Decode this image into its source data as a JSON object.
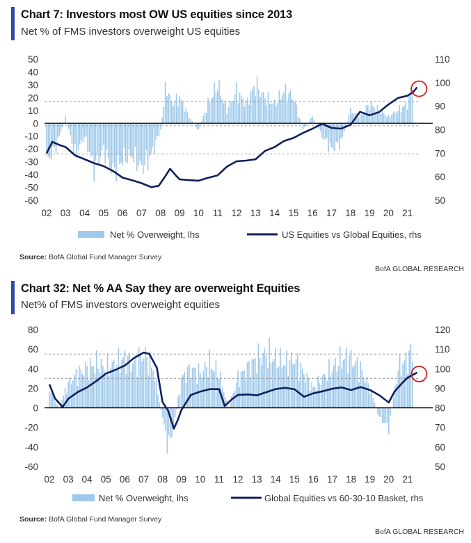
{
  "chart_data": [
    {
      "type": "bar",
      "title": "Chart 7: Investors most OW US equities since 2013",
      "subtitle": "Net % of FMS investors overweight US equities",
      "x_ticks": [
        "02",
        "03",
        "04",
        "05",
        "06",
        "07",
        "08",
        "09",
        "10",
        "11",
        "12",
        "13",
        "14",
        "15",
        "16",
        "17",
        "18",
        "19",
        "20",
        "21"
      ],
      "ylim_left": [
        -60,
        50
      ],
      "yticks_left": [
        50,
        40,
        30,
        20,
        10,
        0,
        -10,
        -20,
        -30,
        -40,
        -50,
        -60
      ],
      "ylim_right": [
        50,
        110
      ],
      "yticks_right": [
        110,
        100,
        90,
        80,
        70,
        60,
        50
      ],
      "reference_lines_left": [
        17,
        -2,
        -24
      ],
      "grid": false,
      "legend_position": "bottom",
      "series": [
        {
          "name": "Net % Overweight, lhs",
          "type": "bar",
          "axis": "left",
          "color": "#9ec9ea",
          "x": [
            2002.0,
            2002.5,
            2003.0,
            2003.5,
            2004.0,
            2004.5,
            2005.0,
            2005.5,
            2006.0,
            2006.5,
            2007.0,
            2007.5,
            2008.0,
            2008.3,
            2008.6,
            2009.0,
            2009.5,
            2010.0,
            2010.5,
            2011.0,
            2011.5,
            2012.0,
            2012.5,
            2013.0,
            2013.5,
            2014.0,
            2014.5,
            2015.0,
            2015.5,
            2016.0,
            2016.5,
            2017.0,
            2017.5,
            2018.0,
            2018.5,
            2019.0,
            2019.5,
            2020.0,
            2020.5,
            2021.0,
            2021.3
          ],
          "values": [
            -30,
            -18,
            5,
            -25,
            -10,
            -35,
            -20,
            -38,
            -28,
            -25,
            -35,
            -25,
            -5,
            30,
            15,
            20,
            5,
            -5,
            15,
            30,
            10,
            25,
            15,
            30,
            20,
            15,
            25,
            20,
            -5,
            5,
            -10,
            -20,
            -15,
            10,
            5,
            15,
            10,
            5,
            10,
            15,
            30
          ]
        },
        {
          "name": "US Equities vs Global Equities, rhs",
          "type": "line",
          "axis": "right",
          "color": "#0f1f5c",
          "x": [
            2002.0,
            2002.3,
            2002.7,
            2003.0,
            2003.5,
            2004.0,
            2004.5,
            2005.0,
            2005.5,
            2006.0,
            2006.5,
            2007.0,
            2007.5,
            2007.9,
            2008.2,
            2008.5,
            2008.8,
            2009.0,
            2009.5,
            2010.0,
            2010.5,
            2011.0,
            2011.5,
            2012.0,
            2012.5,
            2013.0,
            2013.5,
            2014.0,
            2014.5,
            2015.0,
            2015.5,
            2016.0,
            2016.5,
            2017.0,
            2017.5,
            2018.0,
            2018.5,
            2019.0,
            2019.5,
            2020.0,
            2020.5,
            2021.0,
            2021.3,
            2021.5
          ],
          "values": [
            70,
            75,
            73,
            72,
            69,
            68,
            66,
            64,
            62,
            60,
            59,
            57,
            55,
            56,
            60,
            64,
            61,
            59,
            58,
            58,
            60,
            61,
            64,
            66,
            67,
            68,
            71,
            72,
            75,
            77,
            79,
            80,
            82,
            81,
            81,
            82,
            87,
            86,
            88,
            91,
            93,
            94,
            96,
            98
          ]
        }
      ]
    },
    {
      "type": "bar",
      "title": "Chart 32: Net % AA Say they are overweight Equities",
      "subtitle": "Net% of FMS investors overweight equities",
      "x_ticks": [
        "02",
        "03",
        "04",
        "05",
        "06",
        "07",
        "08",
        "09",
        "10",
        "11",
        "12",
        "13",
        "14",
        "15",
        "16",
        "17",
        "18",
        "19",
        "20",
        "21"
      ],
      "ylim_left": [
        -60,
        80
      ],
      "yticks_left": [
        80,
        60,
        40,
        20,
        0,
        -20,
        -40,
        -60
      ],
      "ylim_right": [
        50,
        120
      ],
      "yticks_right": [
        120,
        110,
        100,
        90,
        80,
        70,
        60,
        50
      ],
      "reference_lines_left": [
        55,
        30,
        0
      ],
      "grid": false,
      "legend_position": "bottom",
      "series": [
        {
          "name": "Net % Overweight, lhs",
          "type": "bar",
          "axis": "left",
          "color": "#9ec9ea",
          "x": [
            2002.0,
            2002.5,
            2003.0,
            2003.5,
            2004.0,
            2004.5,
            2005.0,
            2005.5,
            2006.0,
            2006.5,
            2007.0,
            2007.5,
            2008.0,
            2008.3,
            2008.6,
            2009.0,
            2009.5,
            2010.0,
            2010.5,
            2011.0,
            2011.5,
            2012.0,
            2012.5,
            2013.0,
            2013.5,
            2014.0,
            2014.5,
            2015.0,
            2015.5,
            2016.0,
            2016.5,
            2017.0,
            2017.5,
            2018.0,
            2018.5,
            2019.0,
            2019.5,
            2020.0,
            2020.5,
            2021.0,
            2021.3
          ],
          "values": [
            20,
            0,
            25,
            35,
            40,
            45,
            40,
            45,
            50,
            45,
            55,
            40,
            -10,
            -40,
            -20,
            30,
            40,
            35,
            45,
            35,
            0,
            30,
            40,
            50,
            55,
            50,
            45,
            50,
            35,
            20,
            30,
            40,
            50,
            50,
            40,
            20,
            -10,
            -20,
            40,
            50,
            60
          ]
        },
        {
          "name": "Global Equities vs 60-30-10 Basket, rhs",
          "type": "line",
          "axis": "right",
          "color": "#0f1f5c",
          "x": [
            2002.0,
            2002.3,
            2002.7,
            2003.0,
            2003.5,
            2004.0,
            2004.5,
            2005.0,
            2005.5,
            2006.0,
            2006.5,
            2007.0,
            2007.3,
            2007.7,
            2008.0,
            2008.3,
            2008.6,
            2008.8,
            2009.0,
            2009.5,
            2010.0,
            2010.5,
            2011.0,
            2011.3,
            2011.7,
            2012.0,
            2012.5,
            2013.0,
            2013.5,
            2014.0,
            2014.5,
            2015.0,
            2015.5,
            2016.0,
            2016.5,
            2017.0,
            2017.5,
            2018.0,
            2018.5,
            2019.0,
            2019.5,
            2020.0,
            2020.3,
            2020.7,
            2021.0,
            2021.3,
            2021.5
          ],
          "values": [
            92,
            85,
            80,
            84,
            88,
            91,
            94,
            97,
            99,
            102,
            106,
            108,
            107,
            100,
            83,
            79,
            70,
            74,
            79,
            86,
            88,
            90,
            90,
            81,
            84,
            86,
            87,
            87,
            88,
            89,
            90,
            90,
            86,
            87,
            88,
            90,
            91,
            89,
            90,
            89,
            87,
            83,
            88,
            92,
            95,
            97,
            98
          ]
        }
      ]
    }
  ],
  "panels": [
    {
      "legend_bar": "Net % Overweight, lhs",
      "legend_line": "US Equities vs Global Equities, rhs",
      "source_label": "Source:",
      "source_text": " BofA Global Fund Manager Survey",
      "brand": "BofA GLOBAL RESEARCH"
    },
    {
      "legend_bar": "Net % Overweight, lhs",
      "legend_line": "Global Equities vs 60-30-10 Basket, rhs",
      "source_label": "Source:",
      "source_text": " BofA Global Fund Manager Survey",
      "brand": "BofA GLOBAL RESEARCH"
    }
  ],
  "colors": {
    "accent": "#2b4aa8",
    "bar": "#9ec9ea",
    "line": "#0f1f5c",
    "highlight": "#d42020"
  }
}
